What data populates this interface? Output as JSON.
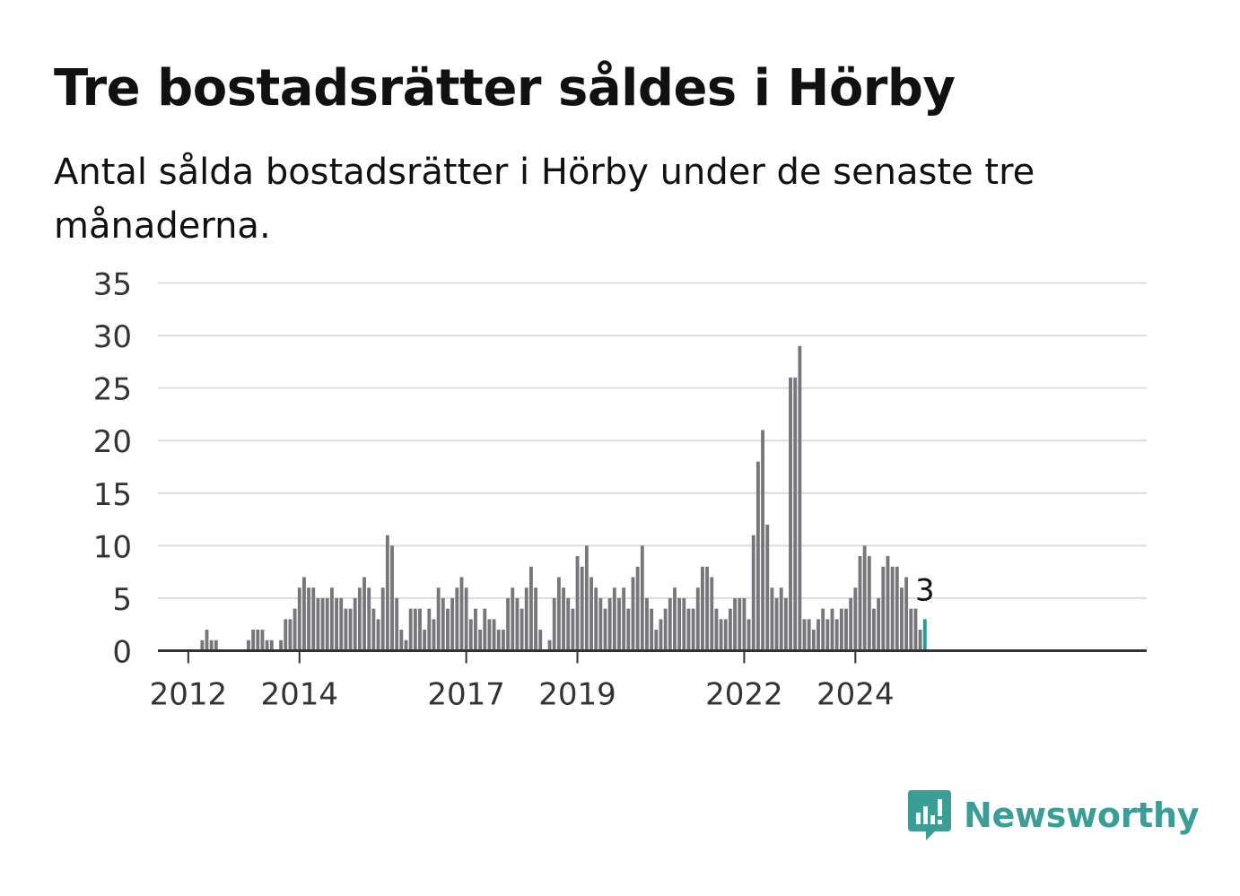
{
  "title": "Tre bostadsrätter såldes i Hörby",
  "subtitle": "Antal sålda bostadsrätter i Hörby under de senaste tre månaderna.",
  "brand": {
    "name": "Newsworthy",
    "color": "#3a9e97"
  },
  "chart_data": {
    "type": "bar",
    "title": "Tre bostadsrätter såldes i Hörby",
    "subtitle": "Antal sålda bostadsrätter i Hörby under de senaste tre månaderna.",
    "xlabel": "",
    "ylabel": "",
    "ylim": [
      0,
      35
    ],
    "yticks": [
      0,
      5,
      10,
      15,
      20,
      25,
      30,
      35
    ],
    "xtick_labels": [
      "2012",
      "2014",
      "2017",
      "2019",
      "2022",
      "2024"
    ],
    "grid": true,
    "bar_color": "#77767b",
    "highlight_color": "#1f9e96",
    "highlight_label": "3",
    "start_month": "2011-09",
    "values": [
      0,
      0,
      0,
      0,
      0,
      0,
      0,
      1,
      2,
      1,
      1,
      0,
      0,
      0,
      0,
      0,
      0,
      1,
      2,
      2,
      2,
      1,
      1,
      0,
      1,
      3,
      3,
      4,
      6,
      7,
      6,
      6,
      5,
      5,
      5,
      6,
      5,
      5,
      4,
      4,
      5,
      6,
      7,
      6,
      4,
      3,
      6,
      11,
      10,
      5,
      2,
      1,
      4,
      4,
      4,
      2,
      4,
      3,
      6,
      5,
      4,
      5,
      6,
      7,
      6,
      3,
      4,
      2,
      4,
      3,
      3,
      2,
      2,
      5,
      6,
      5,
      4,
      6,
      8,
      6,
      2,
      0,
      1,
      5,
      7,
      6,
      5,
      4,
      9,
      8,
      10,
      7,
      6,
      5,
      4,
      5,
      6,
      5,
      6,
      4,
      7,
      8,
      10,
      5,
      4,
      2,
      3,
      4,
      5,
      6,
      5,
      5,
      4,
      4,
      6,
      8,
      8,
      7,
      4,
      3,
      3,
      4,
      5,
      5,
      5,
      3,
      11,
      18,
      21,
      12,
      6,
      5,
      6,
      5,
      26,
      26,
      29,
      3,
      3,
      2,
      3,
      4,
      3,
      4,
      3,
      4,
      4,
      5,
      6,
      9,
      10,
      9,
      4,
      5,
      8,
      9,
      8,
      8,
      6,
      7,
      4,
      4,
      2,
      3
    ]
  }
}
